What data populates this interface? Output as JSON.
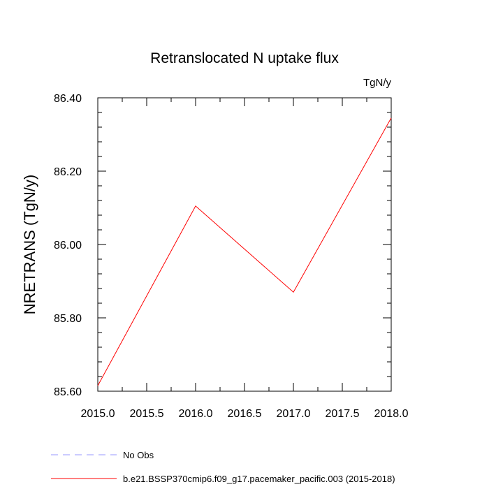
{
  "chart_data": {
    "type": "line",
    "title": "Retranslocated N uptake flux",
    "units_label": "TgN/y",
    "xlabel": "",
    "ylabel": "NRETRANS  (TgN/y)",
    "xlim": [
      2015.0,
      2018.0
    ],
    "ylim": [
      85.6,
      86.4
    ],
    "x_ticks": [
      "2015.0",
      "2015.5",
      "2016.0",
      "2016.5",
      "2017.0",
      "2017.5",
      "2018.0"
    ],
    "y_ticks": [
      "85.60",
      "85.80",
      "86.00",
      "86.20",
      "86.40"
    ],
    "grid": false,
    "legend_placement": "bottom",
    "series": [
      {
        "name": "b.e21.BSSP370cmip6.f09_g17.pacemaker_pacific.003 (2015-2018)",
        "color": "#ff0000",
        "style": "solid",
        "x": [
          2015.0,
          2016.0,
          2017.0,
          2018.0
        ],
        "y": [
          85.615,
          86.105,
          85.87,
          86.345
        ]
      }
    ],
    "legend": [
      {
        "label": "No Obs",
        "color": "#9999ff",
        "style": "dashed"
      },
      {
        "label": "b.e21.BSSP370cmip6.f09_g17.pacemaker_pacific.003 (2015-2018)",
        "color": "#ff0000",
        "style": "solid"
      }
    ]
  }
}
